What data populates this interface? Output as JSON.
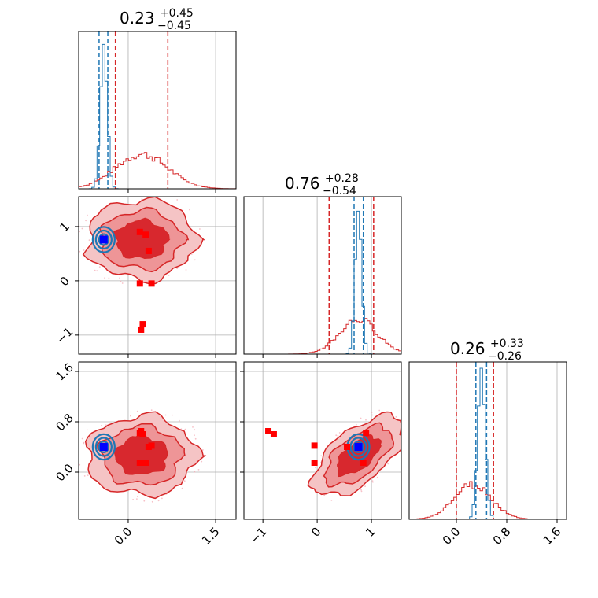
{
  "chart_data": {
    "type": "corner",
    "parameters": 3,
    "colors": {
      "prior": "#d62728",
      "posterior": "#1f77b4",
      "prior_marker": "#ff0000",
      "truth_marker": "#0000ff"
    },
    "grid": true,
    "titles": [
      {
        "value": "0.23",
        "plus": "+0.45",
        "minus": "−0.45"
      },
      {
        "value": "0.76",
        "plus": "+0.28",
        "minus": "−0.54"
      },
      {
        "value": "0.26",
        "plus": "+0.33",
        "minus": "−0.26"
      }
    ],
    "axes": [
      {
        "range": [
          -0.85,
          1.85
        ],
        "ticks": [
          0.0,
          1.5
        ],
        "tick_labels": [
          "0.0",
          "1.5"
        ]
      },
      {
        "range": [
          -1.35,
          1.55
        ],
        "ticks": [
          -1,
          0,
          1
        ],
        "tick_labels": [
          "−1",
          "0",
          "1"
        ]
      },
      {
        "range": [
          -0.75,
          1.75
        ],
        "ticks": [
          0.0,
          0.8,
          1.6
        ],
        "tick_labels": [
          "0.0",
          "0.8",
          "1.6"
        ]
      }
    ],
    "histograms": [
      {
        "prior": {
          "center": 0.23,
          "sigma": 0.45,
          "quantile_lines": [
            -0.22,
            0.68
          ]
        },
        "posterior": {
          "center": -0.42,
          "sigma": 0.05,
          "quantile_lines": [
            -0.5,
            -0.35
          ]
        }
      },
      {
        "prior": {
          "center": 0.76,
          "sigma": 0.35,
          "quantile_lines": [
            0.22,
            1.04
          ]
        },
        "posterior": {
          "center": 0.76,
          "sigma": 0.05,
          "quantile_lines": [
            0.68,
            0.85
          ]
        }
      },
      {
        "prior": {
          "center": 0.26,
          "sigma": 0.3,
          "quantile_lines": [
            0.0,
            0.59
          ]
        },
        "posterior": {
          "center": 0.4,
          "sigma": 0.05,
          "quantile_lines": [
            0.31,
            0.48
          ]
        }
      }
    ],
    "markers": {
      "prior_samples": [
        [
          0.2,
          0.9,
          0.62
        ],
        [
          0.35,
          0.55,
          0.4
        ],
        [
          0.2,
          -0.05,
          0.15
        ],
        [
          0.25,
          -0.8,
          0.6
        ],
        [
          0.22,
          -0.9,
          0.65
        ],
        [
          0.4,
          -0.05,
          0.42
        ],
        [
          0.3,
          0.85,
          0.15
        ]
      ],
      "truth": [
        -0.42,
        0.76,
        0.4
      ]
    }
  }
}
